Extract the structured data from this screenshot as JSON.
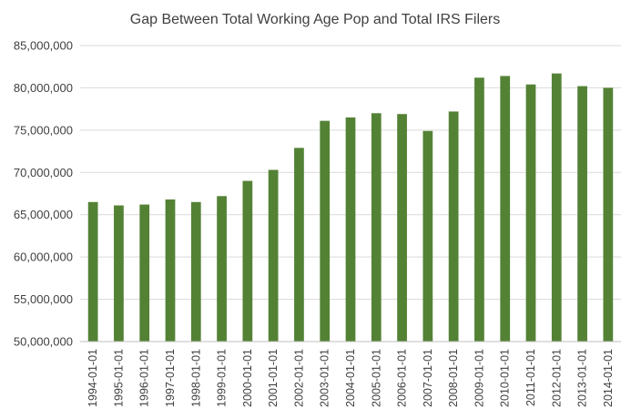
{
  "chart_data": {
    "type": "bar",
    "title": "Gap Between Total Working Age Pop and Total IRS Filers",
    "xlabel": "",
    "ylabel": "",
    "ylim": [
      50000000,
      85000000
    ],
    "yticks": [
      50000000,
      55000000,
      60000000,
      65000000,
      70000000,
      75000000,
      80000000,
      85000000
    ],
    "ytick_labels": [
      "50,000,000",
      "55,000,000",
      "60,000,000",
      "65,000,000",
      "70,000,000",
      "75,000,000",
      "80,000,000",
      "85,000,000"
    ],
    "grid": true,
    "bar_color": "#548235",
    "categories": [
      "1994-01-01",
      "1995-01-01",
      "1996-01-01",
      "1997-01-01",
      "1998-01-01",
      "1999-01-01",
      "2000-01-01",
      "2001-01-01",
      "2002-01-01",
      "2003-01-01",
      "2004-01-01",
      "2005-01-01",
      "2006-01-01",
      "2007-01-01",
      "2008-01-01",
      "2009-01-01",
      "2010-01-01",
      "2011-01-01",
      "2012-01-01",
      "2013-01-01",
      "2014-01-01"
    ],
    "values": [
      66500000,
      66100000,
      66200000,
      66800000,
      66500000,
      67200000,
      69000000,
      70300000,
      72900000,
      76100000,
      76500000,
      77000000,
      76900000,
      74900000,
      77200000,
      81200000,
      81400000,
      80400000,
      81700000,
      80200000,
      80000000
    ]
  }
}
